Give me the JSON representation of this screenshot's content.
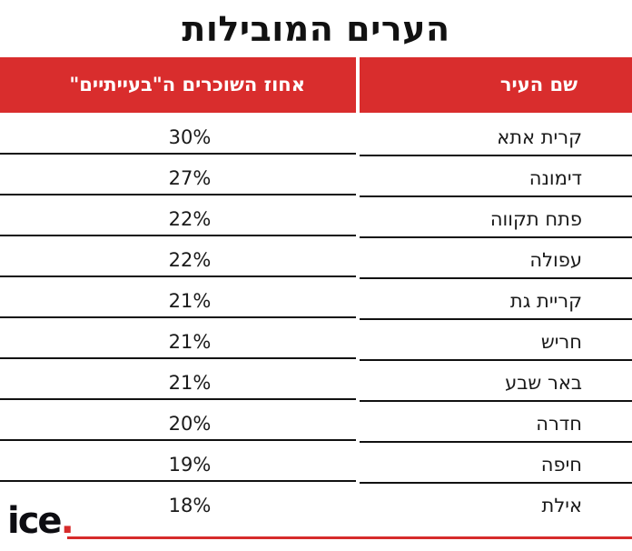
{
  "title": "הערים המובילות",
  "colors": {
    "header_red": "#d92d2d",
    "accent_red": "#d62b2b",
    "text": "#1a1a1a"
  },
  "table": {
    "headers": {
      "city": "שם העיר",
      "percent": "אחוז השוכרים ה\"בעייתיים\""
    },
    "rows": [
      {
        "city": "קרית אתא",
        "percent": "30%"
      },
      {
        "city": "דימונה",
        "percent": "27%"
      },
      {
        "city": "פתח תקווה",
        "percent": "22%"
      },
      {
        "city": "עפולה",
        "percent": "22%"
      },
      {
        "city": "קריית גת",
        "percent": "21%"
      },
      {
        "city": "חריש",
        "percent": "21%"
      },
      {
        "city": "באר שבע",
        "percent": "21%"
      },
      {
        "city": "חדרה",
        "percent": "20%"
      },
      {
        "city": "חיפה",
        "percent": "19%"
      },
      {
        "city": "אילת",
        "percent": "18%"
      }
    ]
  },
  "logo": {
    "text": "ice",
    "dot": "."
  }
}
